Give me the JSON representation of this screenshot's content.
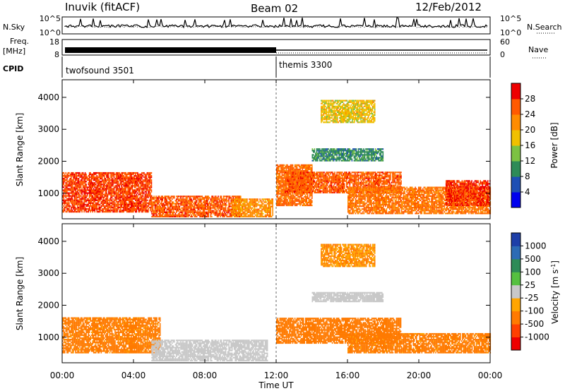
{
  "header": {
    "station": "Inuvik (fitACF)",
    "beam": "Beam 02",
    "date": "12/Feb/2012"
  },
  "noise_panel": {
    "left_label": "N.Sky",
    "right_label": "N.Search",
    "left_ticks": [
      "10^5",
      "10^0"
    ],
    "right_ticks": [
      "10^5",
      "10^0"
    ]
  },
  "freq_panel": {
    "left_label_1": "Freq.",
    "left_label_2": "[MHz]",
    "left_ticks": [
      "18",
      "8"
    ],
    "right_label": "Nave",
    "right_ticks": [
      "60",
      "0"
    ],
    "freq_value_mhz": 10.5
  },
  "cpid_panel": {
    "label": "CPID",
    "modes": [
      {
        "name": "twofsound 3501",
        "start_hour": 0
      },
      {
        "name": "themis 3300",
        "start_hour": 12
      }
    ]
  },
  "time_axis": {
    "ticks": [
      "00:00",
      "04:00",
      "08:00",
      "12:00",
      "16:00",
      "20:00",
      "00:00"
    ],
    "tick_hours": [
      0,
      4,
      8,
      12,
      16,
      20,
      24
    ],
    "label": "Time UT"
  },
  "range_axis": {
    "label": "Slant Range [km]",
    "ticks": [
      "1000",
      "2000",
      "3000",
      "4000"
    ],
    "tick_values": [
      1000,
      2000,
      3000,
      4000
    ],
    "ylim": [
      200,
      4550
    ]
  },
  "power_colorbar": {
    "label": "Power [dB]",
    "ticks": [
      "4",
      "8",
      "12",
      "16",
      "20",
      "24",
      "28"
    ],
    "colors": [
      "#0000ee",
      "#1e4fb4",
      "#2e8b57",
      "#7cc242",
      "#f0c000",
      "#ff8c00",
      "#ff5a00",
      "#ee0000"
    ]
  },
  "velocity_colorbar": {
    "label": "Velocity [m s",
    "label_sup": "-1",
    "label_end": "]",
    "ticks": [
      "1000",
      "500",
      "100",
      "25",
      "-25",
      "-100",
      "-500",
      "-1000"
    ],
    "colors": [
      "#1e3fa8",
      "#2d6bb5",
      "#2e8b57",
      "#55c040",
      "#c8c8c8",
      "#ffa500",
      "#ff7a00",
      "#ff4000",
      "#ee0000"
    ]
  },
  "chart_data": [
    {
      "type": "heatmap",
      "title": "Power",
      "xlabel": "Time UT",
      "ylabel": "Slant Range [km]",
      "xlim": [
        0,
        24
      ],
      "ylim": [
        200,
        4550
      ],
      "colorbar": "Power [dB]",
      "regions": [
        {
          "t0": 0.0,
          "t1": 5.0,
          "r0": 400,
          "r1": 1650,
          "value": 27
        },
        {
          "t0": 5.0,
          "t1": 10.0,
          "r0": 250,
          "r1": 900,
          "value": 26
        },
        {
          "t0": 9.5,
          "t1": 11.8,
          "r0": 250,
          "r1": 800,
          "value": 22
        },
        {
          "t0": 12.0,
          "t1": 14.0,
          "r0": 600,
          "r1": 1900,
          "value": 25
        },
        {
          "t0": 12.5,
          "t1": 19.0,
          "r0": 1000,
          "r1": 1650,
          "value": 26
        },
        {
          "t0": 16.0,
          "t1": 24.0,
          "r0": 350,
          "r1": 1200,
          "value": 24
        },
        {
          "t0": 21.5,
          "t1": 24.0,
          "r0": 600,
          "r1": 1400,
          "value": 28
        },
        {
          "t0": 14.0,
          "t1": 18.0,
          "r0": 2000,
          "r1": 2400,
          "value": 10
        },
        {
          "t0": 14.5,
          "t1": 17.5,
          "r0": 3200,
          "r1": 3900,
          "value": 18
        }
      ]
    },
    {
      "type": "heatmap",
      "title": "Velocity",
      "xlabel": "Time UT",
      "ylabel": "Slant Range [km]",
      "xlim": [
        0,
        24
      ],
      "ylim": [
        200,
        4550
      ],
      "colorbar": "Velocity [m s-1]",
      "regions": [
        {
          "t0": 0.0,
          "t1": 5.5,
          "r0": 500,
          "r1": 1600,
          "value": -150
        },
        {
          "t0": 5.0,
          "t1": 11.5,
          "r0": 250,
          "r1": 900,
          "value": 0
        },
        {
          "t0": 12.0,
          "t1": 19.0,
          "r0": 800,
          "r1": 1600,
          "value": -200
        },
        {
          "t0": 14.0,
          "t1": 18.0,
          "r0": 2100,
          "r1": 2400,
          "value": 0
        },
        {
          "t0": 16.0,
          "t1": 24.0,
          "r0": 500,
          "r1": 1100,
          "value": -150
        },
        {
          "t0": 14.5,
          "t1": 17.5,
          "r0": 3200,
          "r1": 3900,
          "value": -100
        }
      ]
    }
  ]
}
